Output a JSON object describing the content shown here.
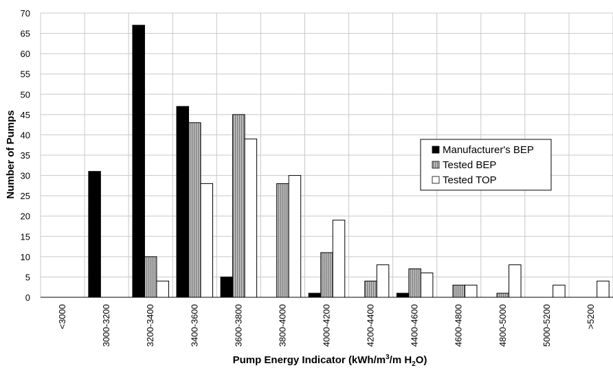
{
  "chart_data": {
    "type": "bar",
    "title": "",
    "xlabel": "Pump Energy Indicator (kWh/m³/m H₂O)",
    "xlabel_parts": [
      "Pump Energy Indicator (kWh/m",
      "3",
      "/m H",
      "2",
      "O)"
    ],
    "ylabel": "Number of Pumps",
    "ylim": [
      0,
      70
    ],
    "yticks": [
      0,
      5,
      10,
      15,
      20,
      25,
      30,
      35,
      40,
      45,
      50,
      55,
      60,
      65,
      70
    ],
    "grid": true,
    "legend_position": "right",
    "categories": [
      "<3000",
      "3000-3200",
      "3200-3400",
      "3400-3600",
      "3600-3800",
      "3800-4000",
      "4000-4200",
      "4200-4400",
      "4400-4600",
      "4600-4800",
      "4800-5000",
      "5000-5200",
      ">5200"
    ],
    "series": [
      {
        "name": "Manufacturer's BEP",
        "fill": "solid-black",
        "values": [
          0,
          31,
          67,
          47,
          5,
          0,
          1,
          0,
          1,
          0,
          0,
          0,
          0
        ]
      },
      {
        "name": "Tested BEP",
        "fill": "gray-striped",
        "values": [
          0,
          0,
          10,
          43,
          45,
          28,
          11,
          4,
          7,
          3,
          1,
          0,
          0
        ]
      },
      {
        "name": "Tested TOP",
        "fill": "white",
        "values": [
          0,
          0,
          4,
          28,
          39,
          30,
          19,
          8,
          6,
          3,
          8,
          3,
          4
        ]
      }
    ],
    "colors": {
      "black": "#000000",
      "gray": "#a8a8a8",
      "white": "#ffffff",
      "grid": "#c8c8c8"
    }
  }
}
